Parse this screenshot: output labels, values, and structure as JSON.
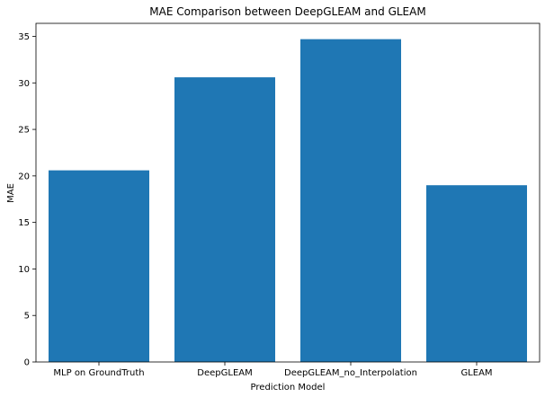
{
  "chart_data": {
    "type": "bar",
    "title": "MAE Comparison between DeepGLEAM and GLEAM",
    "xlabel": "Prediction Model",
    "ylabel": "MAE",
    "categories": [
      "MLP on GroundTruth",
      "DeepGLEAM",
      "DeepGLEAM_no_Interpolation",
      "GLEAM"
    ],
    "values": [
      20.6,
      30.6,
      34.7,
      19.0
    ],
    "ylim": [
      0,
      36.4
    ],
    "yticks": [
      0,
      5,
      10,
      15,
      20,
      25,
      30,
      35
    ],
    "bar_color": "#1f77b4",
    "grid": false,
    "legend": false
  }
}
